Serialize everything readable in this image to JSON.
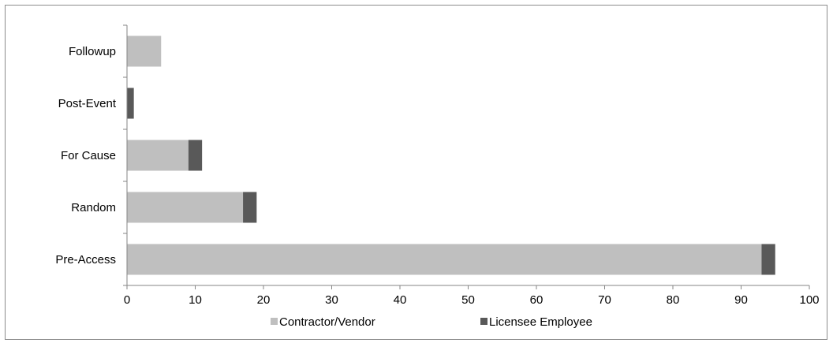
{
  "chart_data": {
    "type": "bar",
    "orientation": "horizontal",
    "stacked": true,
    "title": "",
    "xlabel": "",
    "ylabel": "",
    "categories": [
      "Followup",
      "Post-Event",
      "For Cause",
      "Random",
      "Pre-Access"
    ],
    "series": [
      {
        "name": "Contractor/Vendor",
        "color": "#bfbfbf",
        "values": [
          5,
          0,
          9,
          17,
          93
        ]
      },
      {
        "name": "Licensee Employee",
        "color": "#595959",
        "values": [
          0,
          1,
          2,
          2,
          2
        ]
      }
    ],
    "xlim": [
      0,
      100
    ],
    "xticks": [
      0,
      10,
      20,
      30,
      40,
      50,
      60,
      70,
      80,
      90,
      100
    ],
    "grid": false,
    "legend": "bottom"
  }
}
